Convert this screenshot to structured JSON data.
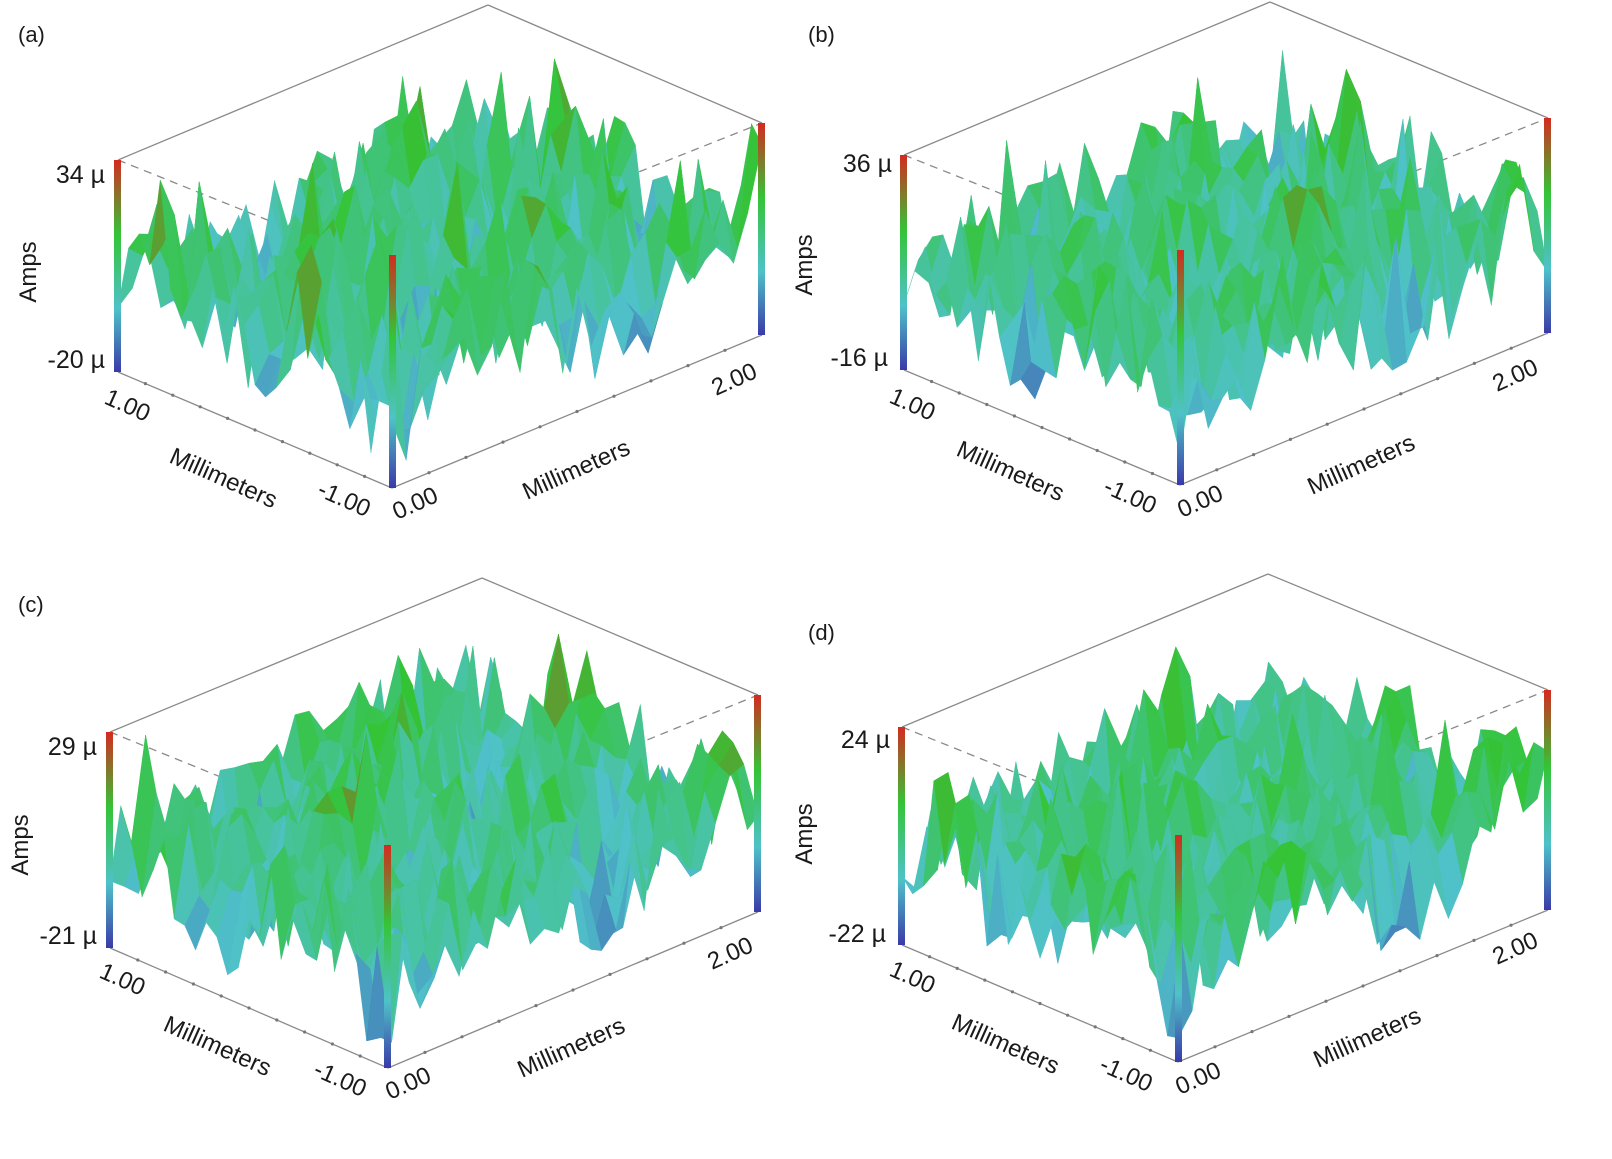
{
  "figure": {
    "panels": [
      {
        "label": "(a)",
        "z_top": "34 µ",
        "z_bottom": "-20 µ"
      },
      {
        "label": "(b)",
        "z_top": "36 µ",
        "z_bottom": "-16 µ"
      },
      {
        "label": "(c)",
        "z_top": "29 µ",
        "z_bottom": "-21 µ"
      },
      {
        "label": "(d)",
        "z_top": "24 µ",
        "z_bottom": "-22 µ"
      }
    ]
  },
  "chart_data": [
    {
      "type": "surface3d",
      "panel": "(a)",
      "zlabel": "Amps",
      "zlim_uA": [
        -20,
        34
      ],
      "x_label": "Millimeters",
      "x_ticks": [
        "1.00",
        "-1.00"
      ],
      "y_label": "Millimeters",
      "y_ticks": [
        "0.00",
        "2.00"
      ],
      "colormap": [
        "#3a3aa8",
        "#4fc2c9",
        "#34c436",
        "#d42a20"
      ],
      "seed": 11
    },
    {
      "type": "surface3d",
      "panel": "(b)",
      "zlabel": "Amps",
      "zlim_uA": [
        -16,
        36
      ],
      "x_label": "Millimeters",
      "x_ticks": [
        "1.00",
        "-1.00"
      ],
      "y_label": "Millimeters",
      "y_ticks": [
        "0.00",
        "2.00"
      ],
      "colormap": [
        "#3a3aa8",
        "#4fc2c9",
        "#34c436",
        "#d42a20"
      ],
      "seed": 23
    },
    {
      "type": "surface3d",
      "panel": "(c)",
      "zlabel": "Amps",
      "zlim_uA": [
        -21,
        29
      ],
      "x_label": "Millimeters",
      "x_ticks": [
        "1.00",
        "-1.00"
      ],
      "y_label": "Millimeters",
      "y_ticks": [
        "0.00",
        "2.00"
      ],
      "colormap": [
        "#3a3aa8",
        "#4fc2c9",
        "#34c436",
        "#d42a20"
      ],
      "seed": 37
    },
    {
      "type": "surface3d",
      "panel": "(d)",
      "zlabel": "Amps",
      "zlim_uA": [
        -22,
        24
      ],
      "x_label": "Millimeters",
      "x_ticks": [
        "1.00",
        "-1.00"
      ],
      "y_label": "Millimeters",
      "y_ticks": [
        "0.00",
        "2.00"
      ],
      "colormap": [
        "#3a3aa8",
        "#4fc2c9",
        "#34c436",
        "#d42a20"
      ],
      "seed": 53
    }
  ]
}
